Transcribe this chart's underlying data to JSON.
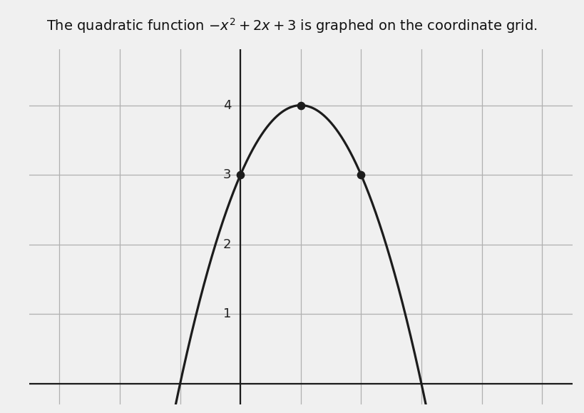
{
  "title_text": "The quadratic function −x² + 2x + 3 is graphed on the coordinate grid.",
  "coefficients": [
    -1,
    2,
    3
  ],
  "x_range": [
    -3.5,
    5.5
  ],
  "y_range": [
    -0.3,
    4.8
  ],
  "y_ticks": [
    1,
    2,
    3,
    4
  ],
  "grid_color": "#b0b0b0",
  "grid_linewidth": 0.9,
  "curve_color": "#1c1c1c",
  "curve_linewidth": 2.3,
  "dot_color": "#1c1c1c",
  "dot_size": 55,
  "axis_color": "#1c1c1c",
  "axis_linewidth": 1.6,
  "background_color": "#f0f0f0",
  "figsize": [
    8.19,
    5.79
  ],
  "dpi": 100,
  "key_points": [
    [
      0,
      3
    ],
    [
      1,
      4
    ],
    [
      2,
      3
    ]
  ],
  "plot_x_min": -2.05,
  "plot_x_max": 4.05,
  "title_fontsize": 14,
  "tick_label_fontsize": 13,
  "tick_label_color": "#222222"
}
